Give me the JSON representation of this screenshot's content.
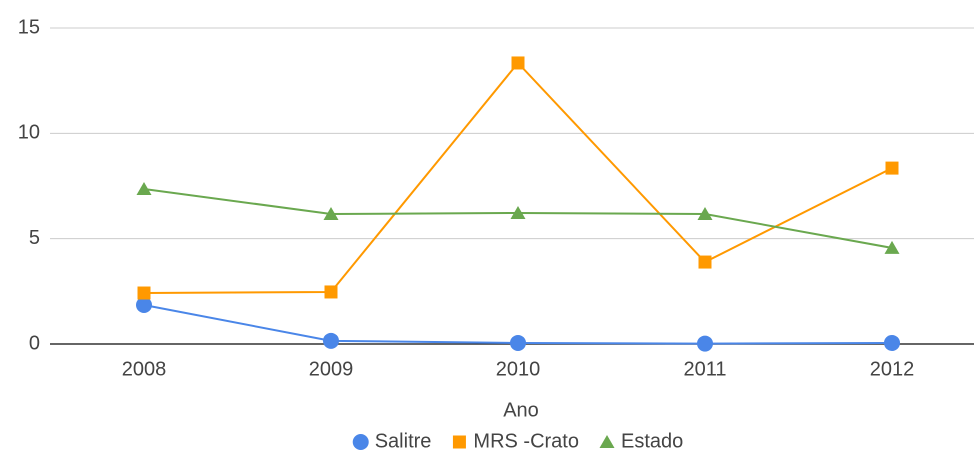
{
  "chart_data": {
    "type": "line",
    "x_label": "Ano",
    "categories": [
      "2008",
      "2009",
      "2010",
      "2011",
      "2012"
    ],
    "series": [
      {
        "name": "Salitre",
        "color": "#4a86e8",
        "marker": "circle",
        "values": [
          1.85,
          0.15,
          0.05,
          0.02,
          0.05
        ]
      },
      {
        "name": "MRS -Crato",
        "color": "#ff9900",
        "marker": "square",
        "values": [
          2.42,
          2.47,
          13.34,
          3.89,
          8.35
        ]
      },
      {
        "name": "Estado",
        "color": "#6aa84f",
        "marker": "triangle",
        "values": [
          7.36,
          6.17,
          6.22,
          6.17,
          4.56
        ]
      }
    ],
    "ylim": [
      0,
      15
    ],
    "yticks": [
      0,
      5,
      10,
      15
    ],
    "grid": true,
    "legend": "bottom"
  }
}
